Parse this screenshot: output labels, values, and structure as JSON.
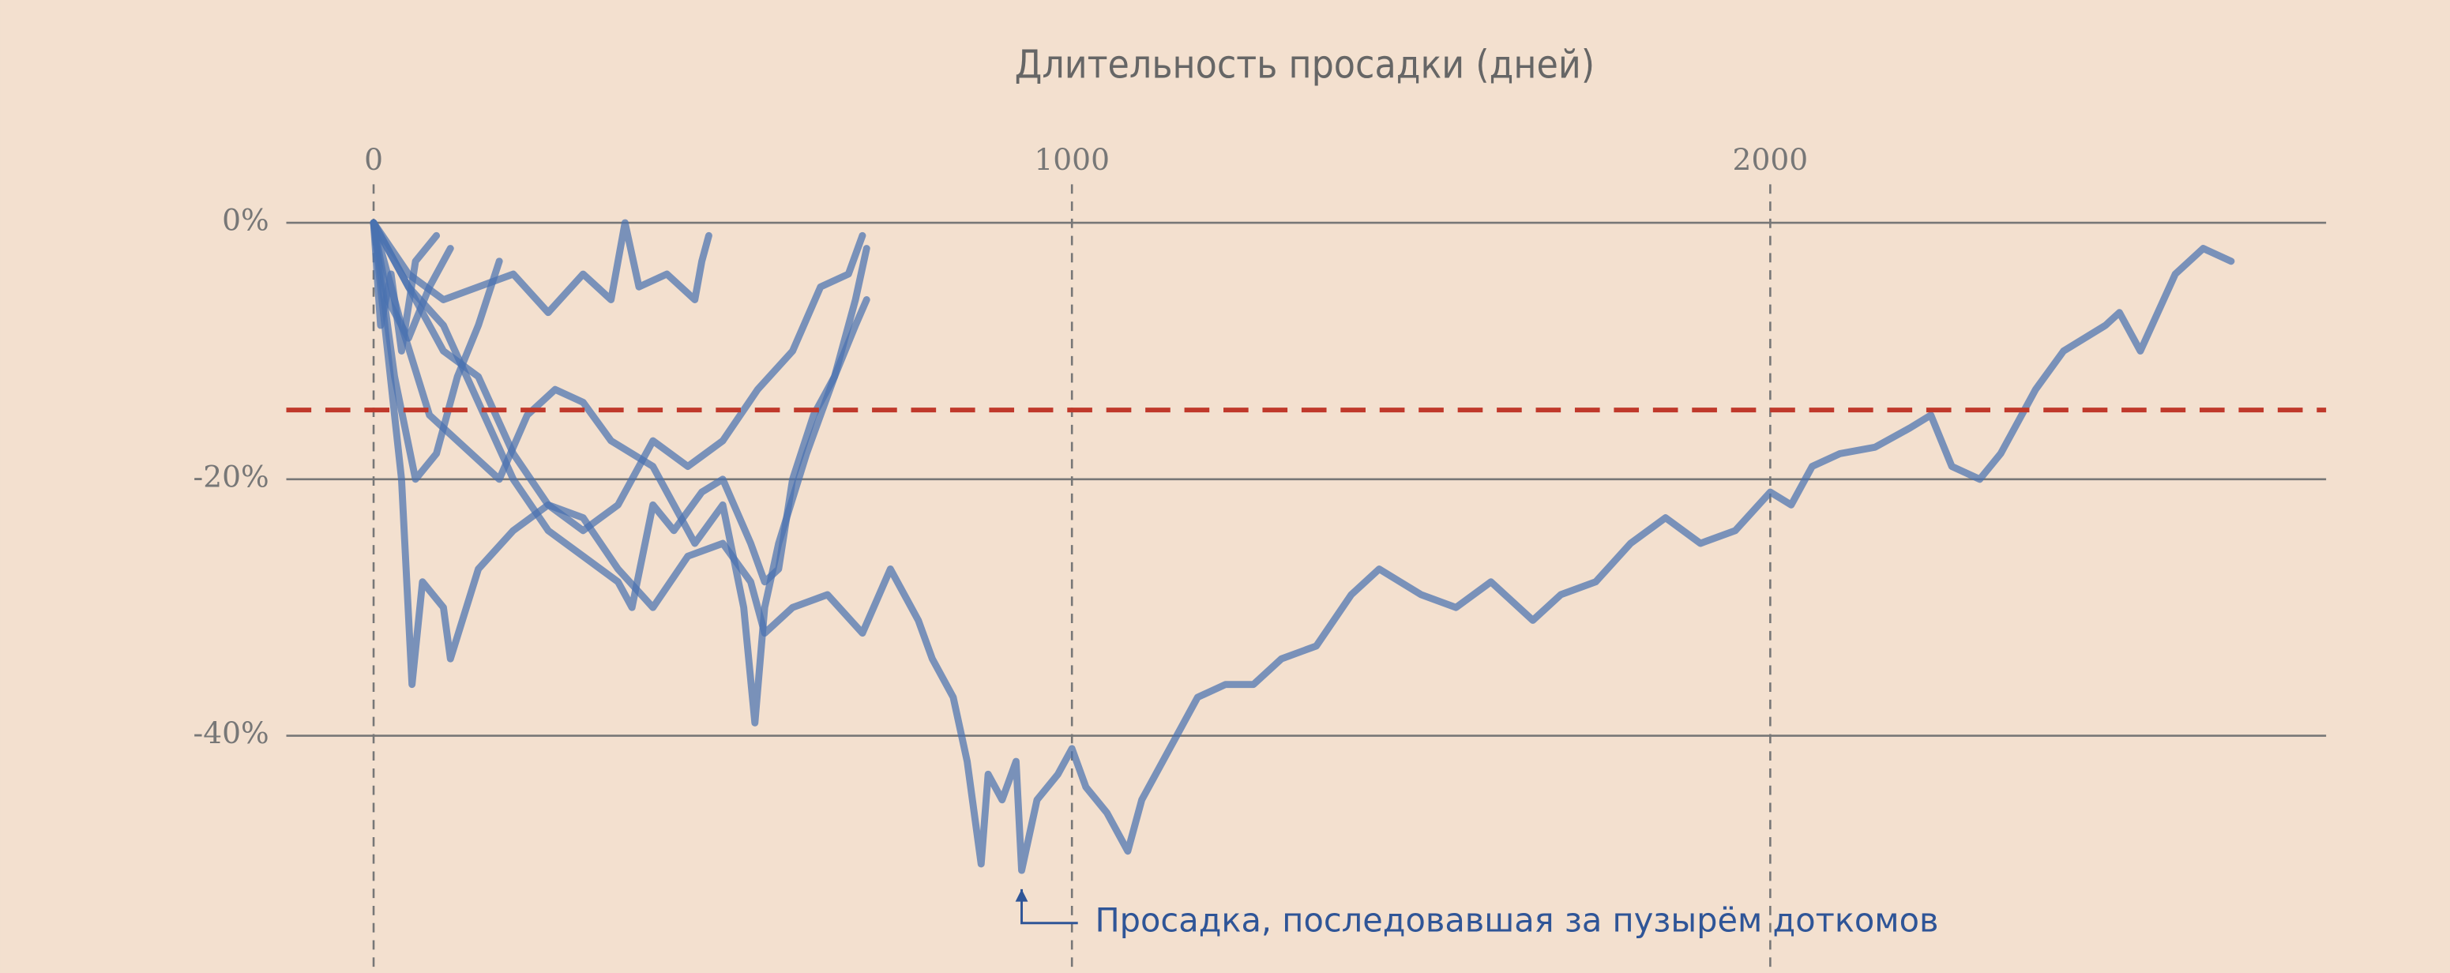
{
  "chart_data": {
    "type": "line",
    "title": "Длительность просадки (дней)",
    "xlim": [
      -125,
      2796
    ],
    "xticks": [
      0,
      1000,
      2000
    ],
    "ylim": [
      -58.5,
      3
    ],
    "yticks": [
      {
        "value": 0,
        "label": "0%"
      },
      {
        "value": -20,
        "label": "-20%"
      },
      {
        "value": -40,
        "label": "-40%"
      }
    ],
    "line_color": "#4a72b0",
    "reference_line": {
      "value": -14.6,
      "color": "#c0392b"
    },
    "annotation": "Просадка, последовавшая за пузырём доткомов",
    "series": [
      {
        "x": [
          0,
          50,
          100,
          150,
          200,
          250,
          300,
          350,
          400,
          450,
          500,
          540,
          560,
          600,
          650,
          700,
          740,
          780,
          800,
          830,
          850,
          870,
          880,
          900,
          920,
          928,
          950,
          980,
          1000,
          1020,
          1050,
          1080,
          1100,
          1150,
          1180,
          1220,
          1260,
          1300,
          1350,
          1400,
          1440,
          1500,
          1550,
          1600,
          1660,
          1700,
          1750,
          1800,
          1850,
          1900,
          1950,
          2000,
          2030,
          2060,
          2100,
          2150,
          2200,
          2230,
          2260,
          2300,
          2330,
          2380,
          2420,
          2480,
          2500,
          2530,
          2580,
          2620,
          2660
        ],
        "values": [
          0,
          -5,
          -10,
          -12,
          -18,
          -22,
          -23,
          -27,
          -30,
          -26,
          -25,
          -28,
          -32,
          -30,
          -29,
          -32,
          -27,
          -31,
          -34,
          -37,
          -42,
          -50,
          -43,
          -45,
          -42,
          -50.5,
          -45,
          -43,
          -41,
          -44,
          -46,
          -49,
          -45,
          -40,
          -37,
          -36,
          -36,
          -34,
          -33,
          -29,
          -27,
          -29,
          -30,
          -28,
          -31,
          -29,
          -28,
          -25,
          -23,
          -25,
          -24,
          -21,
          -22,
          -19,
          -18,
          -17.5,
          -16,
          -15,
          -19,
          -20,
          -18,
          -13,
          -10,
          -8,
          -7,
          -10,
          -4,
          -2,
          -3
        ]
      },
      {
        "x": [
          0,
          20,
          40,
          55,
          70,
          100,
          110,
          150,
          200,
          250,
          300,
          350,
          400,
          450,
          500,
          550,
          600,
          640,
          680,
          700
        ],
        "values": [
          0,
          -10,
          -20,
          -36,
          -28,
          -30,
          -34,
          -27,
          -24,
          -22,
          -24,
          -22,
          -17,
          -19,
          -17,
          -13,
          -10,
          -5,
          -4,
          -1
        ]
      },
      {
        "x": [
          0,
          50,
          100,
          150,
          200,
          250,
          300,
          350,
          370,
          400,
          430,
          470,
          500,
          540,
          560,
          580,
          600,
          630,
          660,
          690,
          706
        ],
        "values": [
          0,
          -5,
          -8,
          -14,
          -20,
          -24,
          -26,
          -28,
          -30,
          -22,
          -24,
          -21,
          -20,
          -25,
          -28,
          -27,
          -20,
          -15,
          -12,
          -8,
          -6
        ]
      },
      {
        "x": [
          0,
          40,
          80,
          120,
          180,
          220,
          260,
          300,
          340,
          400,
          430,
          460,
          500,
          530,
          546,
          560,
          580,
          620,
          660,
          690,
          706
        ],
        "values": [
          0,
          -8,
          -15,
          -17,
          -20,
          -15,
          -13,
          -14,
          -17,
          -19,
          -22,
          -25,
          -22,
          -30,
          -39,
          -30,
          -25,
          -18,
          -12,
          -6,
          -2
        ]
      },
      {
        "x": [
          0,
          50,
          100,
          150,
          200,
          250,
          300,
          340,
          360,
          380,
          420,
          460,
          470,
          480
        ],
        "values": [
          0,
          -4,
          -6,
          -5,
          -4,
          -7,
          -4,
          -6,
          0,
          -5,
          -4,
          -6,
          -3,
          -1
        ]
      },
      {
        "x": [
          0,
          30,
          60,
          90,
          120,
          150,
          180
        ],
        "values": [
          0,
          -12,
          -20,
          -18,
          -12,
          -8,
          -3
        ]
      },
      {
        "x": [
          0,
          20,
          50,
          80,
          110
        ],
        "values": [
          0,
          -6,
          -9,
          -5,
          -2
        ]
      },
      {
        "x": [
          0,
          10,
          25,
          40,
          60,
          90
        ],
        "values": [
          0,
          -8,
          -4,
          -10,
          -3,
          -1
        ]
      }
    ]
  }
}
